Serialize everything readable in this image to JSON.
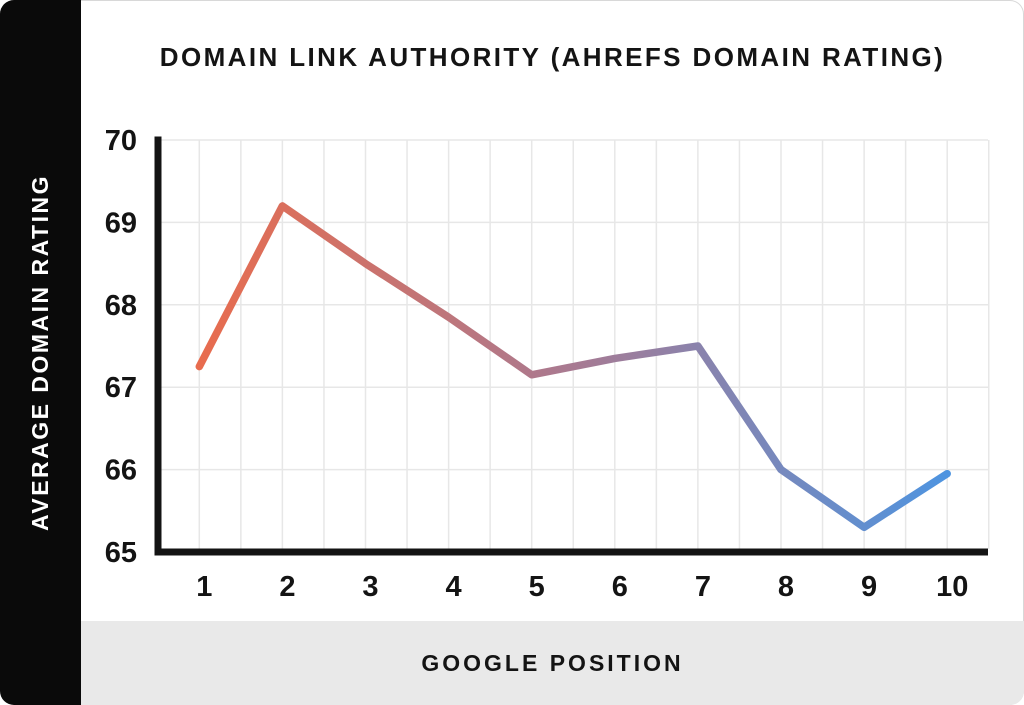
{
  "sidebar": {
    "label": "AVERAGE DOMAIN RATING",
    "bg_color": "#0A0A0A",
    "text_color": "#FFFFFF"
  },
  "header": {
    "title": "DOMAIN LINK AUTHORITY (AHREFS DOMAIN RATING)"
  },
  "footer": {
    "label": "GOOGLE POSITION",
    "bg_color": "#E9E9E9"
  },
  "chart_data": {
    "type": "line",
    "title": "DOMAIN LINK AUTHORITY (AHREFS DOMAIN RATING)",
    "xlabel": "GOOGLE POSITION",
    "ylabel": "AVERAGE DOMAIN RATING",
    "x": [
      1,
      2,
      3,
      4,
      5,
      6,
      7,
      8,
      9,
      10
    ],
    "series": [
      {
        "name": "Average Domain Rating",
        "values": [
          67.25,
          69.2,
          68.5,
          67.85,
          67.15,
          67.35,
          67.5,
          66.0,
          65.3,
          65.95
        ]
      }
    ],
    "ylim": [
      65,
      70
    ],
    "yticks": [
      65,
      66,
      67,
      68,
      69,
      70
    ],
    "grid": {
      "horizontal": "every 1 unit",
      "vertical": "every 0.5 position",
      "color": "#E7E7E7"
    },
    "legend": "none",
    "axis_color": "#141414",
    "line_width": 7.5,
    "line_gradient": [
      "#E86C4E",
      "#A87A92",
      "#4E94E0"
    ]
  }
}
